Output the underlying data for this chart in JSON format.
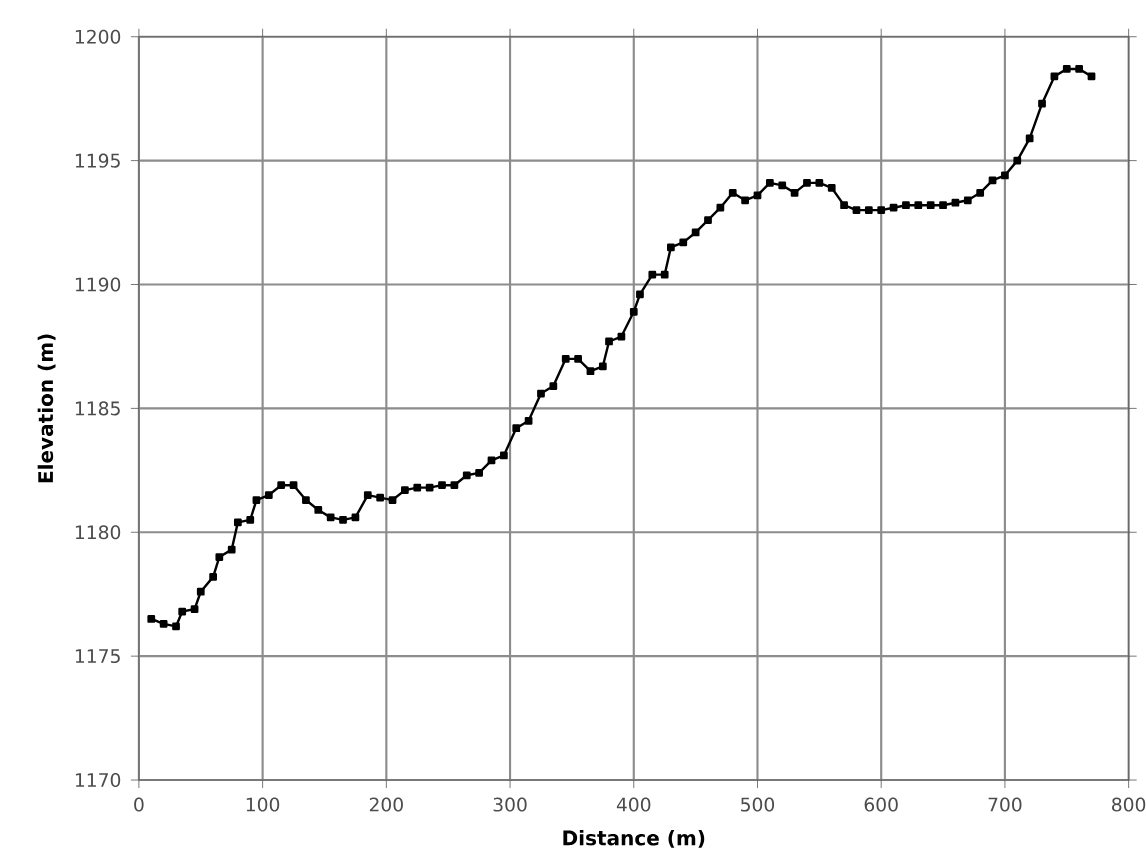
{
  "chart_data": {
    "type": "line",
    "xlabel": "Distance (m)",
    "ylabel": "Elevation (m)",
    "xlim": [
      0,
      800
    ],
    "xticks": [
      0,
      100,
      200,
      300,
      400,
      500,
      600,
      700,
      800
    ],
    "ylim": [
      1170,
      1200
    ],
    "yticks": [
      1170,
      1175,
      1180,
      1185,
      1190,
      1195,
      1200
    ],
    "grid": true,
    "marker": "square",
    "line_style": "solid",
    "series": [
      {
        "color": "#000000",
        "x": [
          10,
          20,
          30,
          35,
          45,
          50,
          60,
          65,
          75,
          80,
          90,
          95,
          105,
          115,
          125,
          135,
          145,
          155,
          165,
          175,
          185,
          195,
          205,
          215,
          225,
          235,
          245,
          255,
          265,
          275,
          285,
          295,
          305,
          315,
          325,
          335,
          345,
          355,
          365,
          375,
          380,
          390,
          400,
          405,
          415,
          425,
          430,
          440,
          450,
          460,
          470,
          480,
          490,
          500,
          510,
          520,
          530,
          540,
          550,
          560,
          570,
          580,
          590,
          600,
          610,
          620,
          630,
          640,
          650,
          660,
          670,
          680,
          690,
          700,
          710,
          720,
          730,
          740,
          750,
          760,
          770
        ],
        "values": [
          1176.5,
          1176.3,
          1176.2,
          1176.8,
          1176.9,
          1177.6,
          1178.2,
          1179.0,
          1179.3,
          1180.4,
          1180.5,
          1181.3,
          1181.5,
          1181.9,
          1181.9,
          1181.3,
          1180.9,
          1180.6,
          1180.5,
          1180.6,
          1181.5,
          1181.4,
          1181.3,
          1181.7,
          1181.8,
          1181.8,
          1181.9,
          1181.9,
          1182.3,
          1182.4,
          1182.9,
          1183.1,
          1184.2,
          1184.5,
          1185.6,
          1185.9,
          1187.0,
          1187.0,
          1186.5,
          1186.7,
          1187.7,
          1187.9,
          1188.9,
          1189.6,
          1190.4,
          1190.4,
          1191.5,
          1191.7,
          1192.1,
          1192.6,
          1193.1,
          1193.7,
          1193.4,
          1193.6,
          1194.1,
          1194.0,
          1193.7,
          1194.1,
          1194.1,
          1193.9,
          1193.2,
          1193.0,
          1193.0,
          1193.0,
          1193.1,
          1193.2,
          1193.2,
          1193.2,
          1193.2,
          1193.3,
          1193.4,
          1193.7,
          1194.2,
          1194.4,
          1195.0,
          1195.9,
          1197.3,
          1198.4,
          1198.7,
          1198.7,
          1198.4
        ]
      }
    ]
  }
}
